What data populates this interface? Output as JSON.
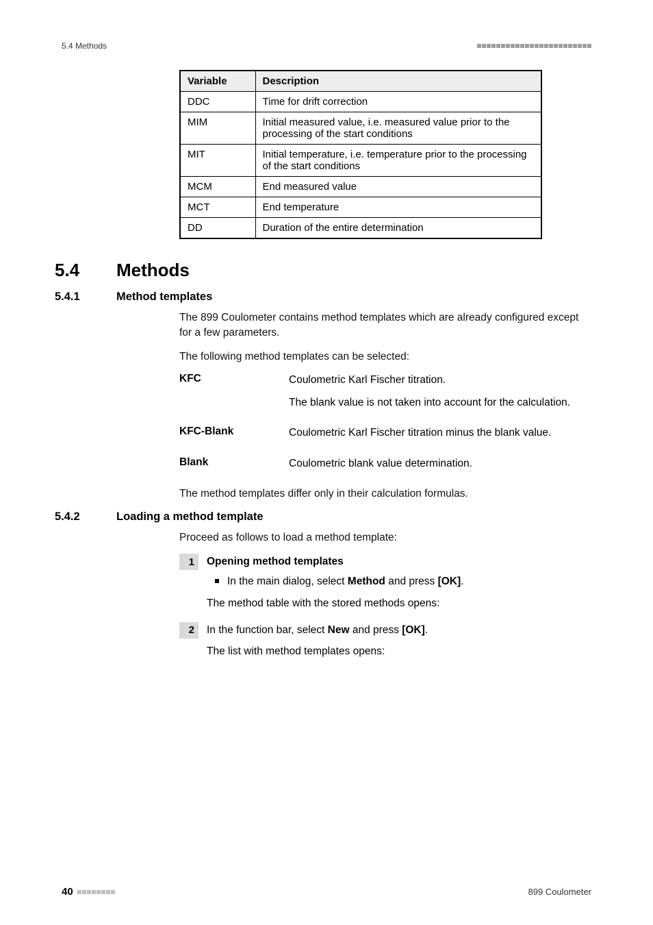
{
  "header": {
    "left": "5.4 Methods",
    "square_count_top": 24,
    "square_color_top": "#9e9e9e"
  },
  "table": {
    "col_variable": "Variable",
    "col_description": "Description",
    "rows": [
      {
        "v": "DDC",
        "d": "Time for drift correction"
      },
      {
        "v": "MIM",
        "d": "Initial measured value, i.e. measured value prior to the processing of the start conditions"
      },
      {
        "v": "MIT",
        "d": "Initial temperature, i.e. temperature prior to the processing of the start conditions"
      },
      {
        "v": "MCM",
        "d": "End measured value"
      },
      {
        "v": "MCT",
        "d": "End temperature"
      },
      {
        "v": "DD",
        "d": "Duration of the entire determination"
      }
    ]
  },
  "section": {
    "num": "5.4",
    "title": "Methods"
  },
  "sub1": {
    "num": "5.4.1",
    "title": "Method templates",
    "p1": "The 899 Coulometer contains method templates which are already configured except for a few parameters.",
    "p2": "The following method templates can be selected:",
    "items": {
      "kfc_term": "KFC",
      "kfc_d1": "Coulometric Karl Fischer titration.",
      "kfc_d2": "The blank value is not taken into account for the calculation.",
      "kfcblank_term": "KFC-Blank",
      "kfcblank_d": "Coulometric Karl Fischer titration minus the blank value.",
      "blank_term": "Blank",
      "blank_d": "Coulometric blank value determination."
    },
    "p3": "The method templates differ only in their calculation formulas."
  },
  "sub2": {
    "num": "5.4.2",
    "title": "Loading a method template",
    "intro": "Proceed as follows to load a method template:",
    "step1": {
      "num": "1",
      "title": "Opening method templates",
      "bullet_pre": "In the main dialog, select ",
      "bullet_b1": "Method",
      "bullet_mid": " and press ",
      "bullet_b2": "[OK]",
      "bullet_post": ".",
      "result": "The method table with the stored methods opens:"
    },
    "step2": {
      "num": "2",
      "line_pre": "In the function bar, select ",
      "line_b1": "New",
      "line_mid": " and press ",
      "line_b2": "[OK]",
      "line_post": ".",
      "result": "The list with method templates opens:"
    }
  },
  "footer": {
    "page": "40",
    "square_count_bottom": 8,
    "square_color_bottom": "#bfbfbf",
    "right": "899 Coulometer"
  }
}
